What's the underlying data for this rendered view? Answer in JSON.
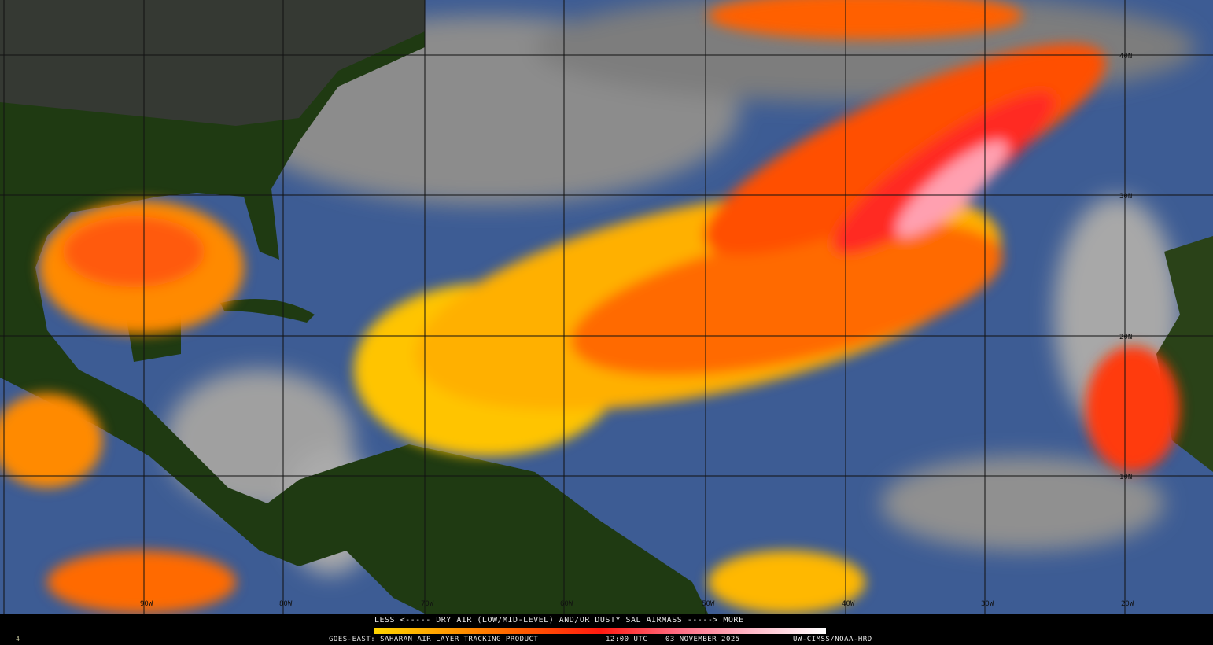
{
  "legend": {
    "scale_text": "LESS <----- DRY AIR (LOW/MID-LEVEL) AND/OR DUSTY SAL AIRMASS -----> MORE",
    "product": "GOES-EAST: SAHARAN AIR LAYER TRACKING PRODUCT",
    "time": "12:00 UTC",
    "date": "03 NOVEMBER 2025",
    "credit": "UW-CIMSS/NOAA-HRD",
    "corner_mark": "4",
    "colorbar": [
      "#ffd400",
      "#ff9a00",
      "#ff5a00",
      "#ff1a10",
      "#ff6a80",
      "#ffb8c8",
      "#ffffff"
    ]
  },
  "map": {
    "longitude_labels": [
      "90W",
      "80W",
      "70W",
      "60W",
      "50W",
      "40W",
      "30W",
      "20W"
    ],
    "latitude_labels": [
      "40N",
      "30N",
      "20N",
      "10N"
    ],
    "colors": {
      "ocean": "#3d5c94",
      "land": "#1f3a12",
      "cloud": "#9a9a9a",
      "sal_low": "#ffd400",
      "sal_mid": "#ff6a00",
      "sal_high": "#ff2020",
      "sal_max": "#ffc0cc"
    }
  }
}
